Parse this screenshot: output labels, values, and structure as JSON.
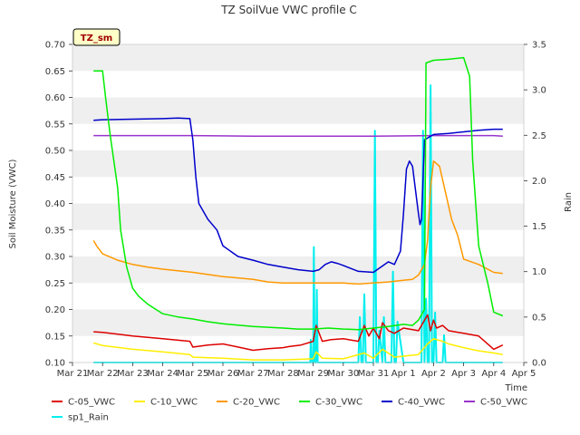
{
  "chart_data": {
    "type": "line",
    "title": "TZ SoilVue VWC profile C",
    "badge": "TZ_sm",
    "xlabel": "Time",
    "ylabel": "Soil Moisture (VWC)",
    "y2label": "Rain",
    "xlim": [
      0,
      15
    ],
    "ylim": [
      0.1,
      0.7
    ],
    "y2lim": [
      0.0,
      3.5
    ],
    "x_ticks": [
      {
        "v": 0,
        "label": "Mar 21"
      },
      {
        "v": 1,
        "label": "Mar 22"
      },
      {
        "v": 2,
        "label": "Mar 23"
      },
      {
        "v": 3,
        "label": "Mar 24"
      },
      {
        "v": 4,
        "label": "Mar 25"
      },
      {
        "v": 5,
        "label": "Mar 26"
      },
      {
        "v": 6,
        "label": "Mar 27"
      },
      {
        "v": 7,
        "label": "Mar 28"
      },
      {
        "v": 8,
        "label": "Mar 29"
      },
      {
        "v": 9,
        "label": "Mar 30"
      },
      {
        "v": 10,
        "label": "Mar 31"
      },
      {
        "v": 11,
        "label": "Apr 1"
      },
      {
        "v": 12,
        "label": "Apr 2"
      },
      {
        "v": 13,
        "label": "Apr 3"
      },
      {
        "v": 14,
        "label": "Apr 4"
      },
      {
        "v": 15,
        "label": "Apr 5"
      }
    ],
    "y_ticks": [
      "0.10",
      "0.15",
      "0.20",
      "0.25",
      "0.30",
      "0.35",
      "0.40",
      "0.45",
      "0.50",
      "0.55",
      "0.60",
      "0.65",
      "0.70"
    ],
    "y2_ticks": [
      "0.0",
      "0.5",
      "1.0",
      "1.5",
      "2.0",
      "2.5",
      "3.0",
      "3.5"
    ],
    "grid": "horizontal bands",
    "legend_position": "bottom",
    "colors": {
      "C-05_VWC": "#dd0000",
      "C-10_VWC": "#ffee00",
      "C-20_VWC": "#ff9900",
      "C-30_VWC": "#00ee00",
      "C-40_VWC": "#0000cc",
      "C-50_VWC": "#9933cc",
      "sp1_Rain": "#00eeee"
    },
    "series": [
      {
        "name": "C-05_VWC",
        "axis": "left",
        "x": [
          0.7,
          1.0,
          2.0,
          3.0,
          3.9,
          4.0,
          4.5,
          5.0,
          5.6,
          6.0,
          6.5,
          7.0,
          7.2,
          7.6,
          8.0,
          8.1,
          8.3,
          8.6,
          9.0,
          9.5,
          9.7,
          9.85,
          10.0,
          10.2,
          10.3,
          10.5,
          10.7,
          11.0,
          11.5,
          11.8,
          11.9,
          12.0,
          12.1,
          12.3,
          12.5,
          13.0,
          13.5,
          14.0,
          14.3
        ],
        "y": [
          0.158,
          0.157,
          0.15,
          0.145,
          0.14,
          0.129,
          0.133,
          0.135,
          0.128,
          0.123,
          0.126,
          0.128,
          0.13,
          0.133,
          0.14,
          0.17,
          0.14,
          0.143,
          0.145,
          0.14,
          0.17,
          0.15,
          0.165,
          0.145,
          0.175,
          0.16,
          0.155,
          0.165,
          0.16,
          0.19,
          0.16,
          0.18,
          0.165,
          0.17,
          0.16,
          0.155,
          0.15,
          0.125,
          0.133
        ]
      },
      {
        "name": "C-10_VWC",
        "axis": "left",
        "x": [
          0.7,
          1.0,
          2.0,
          3.0,
          3.9,
          4.0,
          5.0,
          6.0,
          7.0,
          8.0,
          8.1,
          8.3,
          9.0,
          9.7,
          10.0,
          10.3,
          10.7,
          11.0,
          11.5,
          11.8,
          12.0,
          12.3,
          12.5,
          13.0,
          13.5,
          14.0,
          14.3
        ],
        "y": [
          0.137,
          0.132,
          0.125,
          0.12,
          0.115,
          0.11,
          0.108,
          0.105,
          0.105,
          0.107,
          0.12,
          0.108,
          0.107,
          0.118,
          0.108,
          0.125,
          0.11,
          0.112,
          0.115,
          0.135,
          0.145,
          0.14,
          0.135,
          0.128,
          0.122,
          0.118,
          0.115
        ]
      },
      {
        "name": "C-20_VWC",
        "axis": "left",
        "x": [
          0.7,
          0.8,
          1.0,
          1.5,
          2.0,
          2.5,
          3.0,
          4.0,
          5.0,
          6.0,
          6.5,
          7.0,
          8.0,
          9.0,
          9.5,
          10.0,
          10.5,
          11.0,
          11.3,
          11.5,
          11.7,
          11.8,
          11.9,
          12.0,
          12.2,
          12.4,
          12.6,
          12.8,
          13.0,
          13.5,
          14.0,
          14.3
        ],
        "y": [
          0.33,
          0.32,
          0.305,
          0.293,
          0.285,
          0.28,
          0.276,
          0.27,
          0.262,
          0.257,
          0.252,
          0.25,
          0.25,
          0.25,
          0.248,
          0.25,
          0.252,
          0.255,
          0.257,
          0.265,
          0.285,
          0.33,
          0.43,
          0.48,
          0.47,
          0.42,
          0.37,
          0.34,
          0.295,
          0.285,
          0.27,
          0.268
        ]
      },
      {
        "name": "C-30_VWC",
        "axis": "left",
        "x": [
          0.7,
          1.0,
          1.1,
          1.25,
          1.5,
          1.6,
          1.8,
          2.0,
          2.2,
          2.5,
          3.0,
          3.5,
          4.0,
          4.5,
          5.0,
          6.0,
          7.0,
          7.5,
          8.0,
          8.5,
          9.0,
          9.5,
          10.0,
          10.5,
          11.0,
          11.3,
          11.5,
          11.7,
          11.75,
          12.0,
          12.5,
          13.0,
          13.2,
          13.3,
          13.5,
          13.8,
          14.0,
          14.3
        ],
        "y": [
          0.65,
          0.65,
          0.6,
          0.53,
          0.43,
          0.35,
          0.28,
          0.24,
          0.225,
          0.21,
          0.192,
          0.186,
          0.182,
          0.177,
          0.173,
          0.168,
          0.165,
          0.163,
          0.163,
          0.165,
          0.163,
          0.162,
          0.165,
          0.168,
          0.172,
          0.17,
          0.18,
          0.2,
          0.665,
          0.67,
          0.672,
          0.675,
          0.64,
          0.48,
          0.32,
          0.25,
          0.195,
          0.188
        ]
      },
      {
        "name": "C-40_VWC",
        "axis": "left",
        "x": [
          0.7,
          1.0,
          2.0,
          3.0,
          3.5,
          3.9,
          4.0,
          4.1,
          4.2,
          4.5,
          4.8,
          5.0,
          5.5,
          6.0,
          6.5,
          7.0,
          7.5,
          8.0,
          8.2,
          8.4,
          8.6,
          8.8,
          9.0,
          9.5,
          10.0,
          10.3,
          10.5,
          10.7,
          10.9,
          11.0,
          11.1,
          11.2,
          11.3,
          11.5,
          11.55,
          11.6,
          11.7,
          12.0,
          12.5,
          13.0,
          13.5,
          14.0,
          14.3
        ],
        "y": [
          0.557,
          0.558,
          0.559,
          0.56,
          0.561,
          0.56,
          0.52,
          0.45,
          0.4,
          0.37,
          0.35,
          0.32,
          0.3,
          0.293,
          0.285,
          0.28,
          0.275,
          0.272,
          0.275,
          0.285,
          0.29,
          0.287,
          0.283,
          0.272,
          0.27,
          0.282,
          0.29,
          0.285,
          0.31,
          0.38,
          0.465,
          0.48,
          0.47,
          0.38,
          0.36,
          0.37,
          0.52,
          0.53,
          0.532,
          0.535,
          0.538,
          0.54,
          0.54
        ]
      },
      {
        "name": "C-50_VWC",
        "axis": "left",
        "x": [
          0.7,
          2.0,
          4.0,
          6.0,
          8.0,
          10.0,
          12.0,
          13.0,
          14.0,
          14.3
        ],
        "y": [
          0.528,
          0.528,
          0.528,
          0.527,
          0.527,
          0.527,
          0.528,
          0.528,
          0.528,
          0.527
        ]
      },
      {
        "name": "sp1_Rain",
        "axis": "right",
        "x": [
          0.7,
          7.9,
          7.92,
          7.95,
          8.0,
          8.02,
          8.05,
          8.1,
          8.12,
          8.15,
          8.3,
          9.0,
          9.5,
          9.55,
          9.6,
          9.65,
          9.7,
          9.75,
          10.0,
          10.05,
          10.1,
          10.15,
          10.2,
          10.3,
          10.35,
          10.4,
          10.45,
          10.5,
          10.6,
          10.65,
          10.7,
          10.75,
          10.8,
          11.0,
          11.6,
          11.65,
          11.7,
          11.75,
          11.8,
          11.85,
          11.9,
          11.95,
          12.0,
          12.05,
          12.1,
          12.15,
          12.2,
          12.3,
          12.35,
          12.4,
          12.45,
          12.5,
          14.3
        ],
        "y": [
          0.0,
          0.0,
          0.25,
          0.0,
          0.0,
          1.27,
          0.0,
          0.0,
          0.8,
          0.0,
          0.0,
          0.0,
          0.0,
          0.5,
          0.0,
          0.0,
          0.75,
          0.0,
          0.0,
          2.55,
          0.0,
          0.0,
          0.35,
          0.0,
          0.5,
          0.0,
          0.0,
          0.0,
          0.0,
          1.0,
          0.0,
          0.0,
          0.45,
          0.0,
          0.0,
          2.55,
          0.0,
          0.7,
          0.0,
          0.0,
          3.05,
          0.0,
          0.0,
          0.55,
          0.0,
          0.0,
          0.0,
          0.0,
          0.3,
          0.0,
          0.0,
          0.0,
          0.0
        ]
      }
    ]
  }
}
